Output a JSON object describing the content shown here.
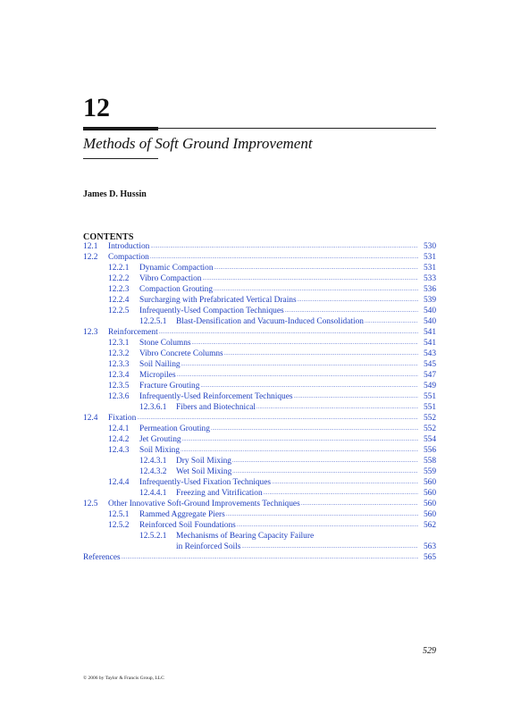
{
  "chapter": {
    "number": "12",
    "title": "Methods of Soft Ground Improvement",
    "author": "James D. Hussin"
  },
  "contents_heading": "CONTENTS",
  "toc": [
    {
      "num": "12.1",
      "title": "Introduction",
      "page": "530"
    },
    {
      "num": "12.2",
      "title": "Compaction",
      "page": "531"
    },
    {
      "num": "12.2.1",
      "title": "Dynamic Compaction",
      "page": "531"
    },
    {
      "num": "12.2.2",
      "title": "Vibro Compaction",
      "page": "533"
    },
    {
      "num": "12.2.3",
      "title": "Compaction Grouting",
      "page": "536"
    },
    {
      "num": "12.2.4",
      "title": "Surcharging with Prefabricated Vertical Drains",
      "page": "539"
    },
    {
      "num": "12.2.5",
      "title": "Infrequently-Used Compaction Techniques",
      "page": "540"
    },
    {
      "num": "12.2.5.1",
      "title": "Blast-Densification and Vacuum-Induced Consolidation",
      "page": "540"
    },
    {
      "num": "12.3",
      "title": "Reinforcement",
      "page": "541"
    },
    {
      "num": "12.3.1",
      "title": "Stone Columns",
      "page": "541"
    },
    {
      "num": "12.3.2",
      "title": "Vibro Concrete Columns",
      "page": "543"
    },
    {
      "num": "12.3.3",
      "title": "Soil Nailing",
      "page": "545"
    },
    {
      "num": "12.3.4",
      "title": "Micropiles",
      "page": "547"
    },
    {
      "num": "12.3.5",
      "title": "Fracture Grouting",
      "page": "549"
    },
    {
      "num": "12.3.6",
      "title": "Infrequently-Used Reinforcement Techniques",
      "page": "551"
    },
    {
      "num": "12.3.6.1",
      "title": "Fibers and Biotechnical",
      "page": "551"
    },
    {
      "num": "12.4",
      "title": "Fixation",
      "page": "552"
    },
    {
      "num": "12.4.1",
      "title": "Permeation Grouting",
      "page": "552"
    },
    {
      "num": "12.4.2",
      "title": "Jet Grouting",
      "page": "554"
    },
    {
      "num": "12.4.3",
      "title": "Soil Mixing",
      "page": "556"
    },
    {
      "num": "12.4.3.1",
      "title": "Dry Soil Mixing",
      "page": "558"
    },
    {
      "num": "12.4.3.2",
      "title": "Wet Soil Mixing",
      "page": "559"
    },
    {
      "num": "12.4.4",
      "title": "Infrequently-Used Fixation Techniques",
      "page": "560"
    },
    {
      "num": "12.4.4.1",
      "title": "Freezing and Vitrification",
      "page": "560"
    },
    {
      "num": "12.5",
      "title": "Other Innovative Soft-Ground Improvements Techniques",
      "page": "560"
    },
    {
      "num": "12.5.1",
      "title": "Rammed Aggregate Piers",
      "page": "560"
    },
    {
      "num": "12.5.2",
      "title": "Reinforced Soil Foundations",
      "page": "562"
    },
    {
      "num": "12.5.2.1",
      "title": "Mechanisms of Bearing Capacity Failure",
      "page": ""
    },
    {
      "num": "",
      "title": "in Reinforced Soils",
      "page": "563"
    },
    {
      "num": "",
      "title": "References",
      "page": "565"
    }
  ],
  "page_number": "529",
  "footer": "© 2006 by Taylor & Francis Group, LLC",
  "colors": {
    "link": "#1f3fbf",
    "text": "#111111"
  }
}
